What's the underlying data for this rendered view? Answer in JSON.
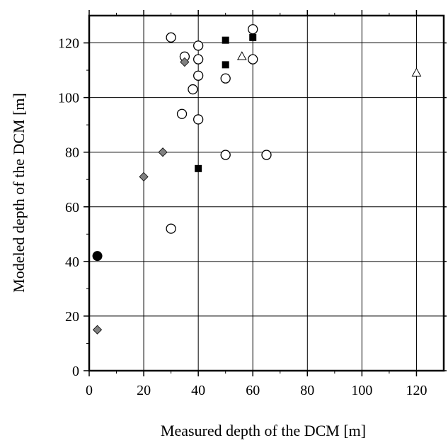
{
  "chart_data": {
    "type": "scatter",
    "title": "",
    "xlabel": "Measured depth of the DCM [m]",
    "ylabel": "Modeled depth of the DCM [m]",
    "xlim": [
      0,
      130
    ],
    "ylim": [
      0,
      130
    ],
    "xticks": [
      0,
      20,
      40,
      60,
      80,
      100,
      120
    ],
    "yticks": [
      0,
      20,
      40,
      60,
      80,
      100,
      120
    ],
    "grid": true,
    "legend": "none",
    "series": [
      {
        "marker": "open-circle",
        "points": [
          [
            30,
            122
          ],
          [
            40,
            119
          ],
          [
            60,
            125
          ],
          [
            35,
            115
          ],
          [
            40,
            114
          ],
          [
            60,
            114
          ],
          [
            40,
            108
          ],
          [
            50,
            107
          ],
          [
            38,
            103
          ],
          [
            34,
            94
          ],
          [
            40,
            92
          ],
          [
            50,
            79
          ],
          [
            65,
            79
          ],
          [
            30,
            52
          ]
        ]
      },
      {
        "marker": "filled-square",
        "points": [
          [
            50,
            121
          ],
          [
            60,
            122
          ],
          [
            50,
            112
          ],
          [
            40,
            74
          ]
        ]
      },
      {
        "marker": "open-triangle",
        "points": [
          [
            56,
            115
          ],
          [
            120,
            109
          ]
        ]
      },
      {
        "marker": "gray-diamond",
        "points": [
          [
            35,
            113
          ],
          [
            27,
            80
          ],
          [
            20,
            71
          ],
          [
            3,
            15
          ]
        ]
      },
      {
        "marker": "filled-circle",
        "points": [
          [
            3,
            42
          ]
        ]
      }
    ],
    "colors": {
      "axis": "#000000",
      "grid": "#000000",
      "diamond_fill": "#808080",
      "filled": "#000000",
      "open": "#ffffff"
    }
  }
}
